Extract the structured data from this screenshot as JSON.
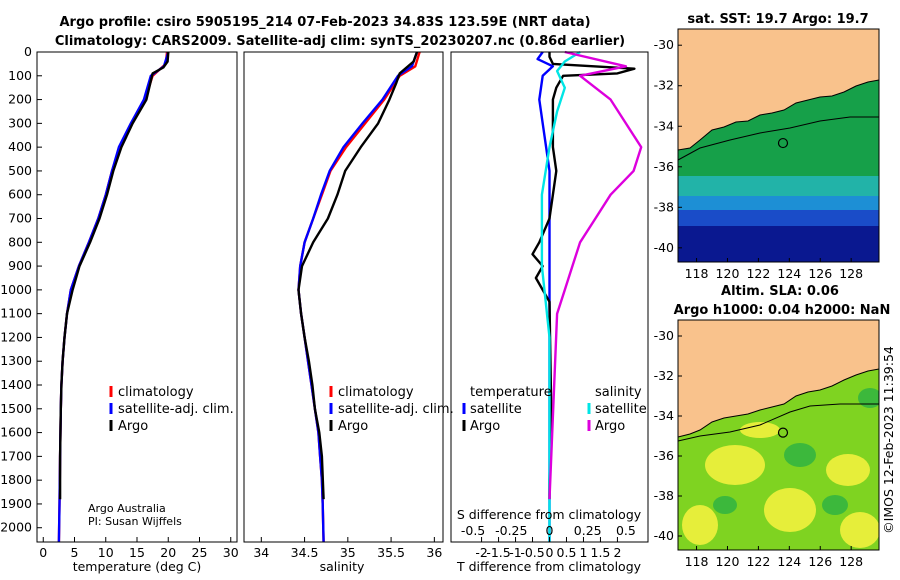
{
  "title_line1": "Argo profile: csiro 5905195_214 07-Feb-2023 34.83S 123.59E (NRT data)",
  "title_line2": "Climatology: CARS2009. Satellite-adj clim: synTS_20230207.nc (0.86d earlier)",
  "credit": {
    "line1": "Argo Australia",
    "line2": "PI: Susan Wijffels"
  },
  "watermark": "©IMOS 12-Feb-2023 11:39:54",
  "colors": {
    "climatology": "#ff0000",
    "satellite": "#0000ff",
    "argo": "#000000",
    "sat_s": "#00e5e5",
    "argo_s": "#dd00dd",
    "land": "#f9c28c"
  },
  "chart_data": [
    {
      "type": "line",
      "id": "temperature",
      "xlabel": "temperature (deg C)",
      "xlim": [
        -1,
        31
      ],
      "ylim": [
        2060,
        0
      ],
      "xticks": [
        "0",
        "5",
        "10",
        "15",
        "20",
        "25",
        "30"
      ],
      "yticks": [
        "0",
        "100",
        "200",
        "300",
        "400",
        "500",
        "600",
        "700",
        "800",
        "900",
        "1000",
        "1100",
        "1200",
        "1300",
        "1400",
        "1500",
        "1600",
        "1700",
        "1800",
        "1900",
        "2000"
      ],
      "legend": [
        "climatology",
        "satellite-adj. clim.",
        "Argo"
      ],
      "series": [
        {
          "name": "climatology",
          "points": [
            [
              19.8,
              0
            ],
            [
              19.6,
              50
            ],
            [
              17.5,
              100
            ],
            [
              16.3,
              200
            ],
            [
              14.2,
              300
            ],
            [
              12.3,
              400
            ],
            [
              11,
              500
            ],
            [
              10,
              600
            ],
            [
              8.8,
              700
            ],
            [
              7.3,
              800
            ],
            [
              5.7,
              900
            ],
            [
              4.4,
              1000
            ],
            [
              3.8,
              1100
            ],
            [
              3.4,
              1200
            ],
            [
              3.1,
              1300
            ],
            [
              2.9,
              1400
            ],
            [
              2.8,
              1500
            ],
            [
              2.7,
              1700
            ],
            [
              2.6,
              1900
            ],
            [
              2.5,
              2060
            ]
          ]
        },
        {
          "name": "satellite-adj. clim.",
          "points": [
            [
              20,
              0
            ],
            [
              19.3,
              60
            ],
            [
              17.2,
              100
            ],
            [
              16.1,
              200
            ],
            [
              14,
              300
            ],
            [
              12.1,
              400
            ],
            [
              11,
              500
            ],
            [
              10,
              600
            ],
            [
              8.8,
              700
            ],
            [
              7.3,
              800
            ],
            [
              5.7,
              900
            ],
            [
              4.4,
              1000
            ],
            [
              3.8,
              1100
            ],
            [
              3.4,
              1200
            ],
            [
              3.1,
              1300
            ],
            [
              2.9,
              1400
            ],
            [
              2.8,
              1500
            ],
            [
              2.7,
              1700
            ],
            [
              2.6,
              1900
            ],
            [
              2.5,
              2060
            ]
          ]
        },
        {
          "name": "Argo",
          "points": [
            [
              20,
              0
            ],
            [
              19.9,
              40
            ],
            [
              19.2,
              65
            ],
            [
              17.5,
              90
            ],
            [
              16.5,
              200
            ],
            [
              14.3,
              300
            ],
            [
              12.5,
              400
            ],
            [
              11.2,
              500
            ],
            [
              10.2,
              600
            ],
            [
              9,
              700
            ],
            [
              7.5,
              800
            ],
            [
              5.8,
              900
            ],
            [
              4.7,
              1000
            ],
            [
              3.8,
              1100
            ],
            [
              3.4,
              1200
            ],
            [
              3.1,
              1300
            ],
            [
              2.9,
              1400
            ],
            [
              2.8,
              1500
            ],
            [
              2.7,
              1700
            ],
            [
              2.7,
              1880
            ]
          ]
        }
      ]
    },
    {
      "type": "line",
      "id": "salinity",
      "xlabel": "salinity",
      "xlim": [
        33.8,
        36.1
      ],
      "ylim": [
        2060,
        0
      ],
      "xticks": [
        "34",
        "34.5",
        "35",
        "35.5",
        "36"
      ],
      "legend": [
        "climatology",
        "satellite-adj. clim.",
        "Argo"
      ],
      "series": [
        {
          "name": "climatology",
          "points": [
            [
              35.83,
              0
            ],
            [
              35.78,
              60
            ],
            [
              35.6,
              100
            ],
            [
              35.42,
              200
            ],
            [
              35.2,
              300
            ],
            [
              34.98,
              400
            ],
            [
              34.8,
              500
            ],
            [
              34.7,
              600
            ],
            [
              34.6,
              700
            ],
            [
              34.5,
              800
            ],
            [
              34.45,
              900
            ],
            [
              34.43,
              1000
            ],
            [
              34.46,
              1100
            ],
            [
              34.5,
              1200
            ],
            [
              34.54,
              1300
            ],
            [
              34.58,
              1400
            ],
            [
              34.62,
              1500
            ],
            [
              34.66,
              1600
            ],
            [
              34.68,
              1700
            ],
            [
              34.7,
              1800
            ],
            [
              34.71,
              1900
            ],
            [
              34.72,
              2060
            ]
          ]
        },
        {
          "name": "satellite-adj. clim.",
          "points": [
            [
              35.8,
              0
            ],
            [
              35.74,
              60
            ],
            [
              35.58,
              100
            ],
            [
              35.4,
              200
            ],
            [
              35.17,
              300
            ],
            [
              34.95,
              400
            ],
            [
              34.79,
              500
            ],
            [
              34.69,
              600
            ],
            [
              34.6,
              700
            ],
            [
              34.5,
              800
            ],
            [
              34.45,
              900
            ],
            [
              34.43,
              1000
            ],
            [
              34.46,
              1100
            ],
            [
              34.5,
              1200
            ],
            [
              34.54,
              1300
            ],
            [
              34.58,
              1400
            ],
            [
              34.62,
              1500
            ],
            [
              34.66,
              1600
            ],
            [
              34.68,
              1700
            ],
            [
              34.7,
              1800
            ],
            [
              34.71,
              1900
            ],
            [
              34.72,
              2060
            ]
          ]
        },
        {
          "name": "Argo",
          "points": [
            [
              35.8,
              0
            ],
            [
              35.76,
              40
            ],
            [
              35.6,
              90
            ],
            [
              35.56,
              130
            ],
            [
              35.48,
              200
            ],
            [
              35.35,
              300
            ],
            [
              35.15,
              400
            ],
            [
              34.97,
              500
            ],
            [
              34.88,
              600
            ],
            [
              34.77,
              700
            ],
            [
              34.6,
              800
            ],
            [
              34.47,
              900
            ],
            [
              34.43,
              1000
            ],
            [
              34.46,
              1100
            ],
            [
              34.5,
              1200
            ],
            [
              34.55,
              1300
            ],
            [
              34.59,
              1400
            ],
            [
              34.62,
              1500
            ],
            [
              34.67,
              1600
            ],
            [
              34.7,
              1700
            ],
            [
              34.72,
              1880
            ]
          ]
        }
      ]
    },
    {
      "type": "line",
      "id": "difference",
      "xlabel": "T difference from climatology",
      "xlabel2": "S difference from climatology",
      "xlim": [
        -2.9,
        2.9
      ],
      "ylim": [
        2060,
        0
      ],
      "xticks": [
        "-2",
        "-1.5",
        "-1",
        "-0.5",
        "0",
        "0.5",
        "1",
        "1.5",
        "2"
      ],
      "s_ticks": [
        "-0.5",
        "-0.25",
        "0",
        "0.25",
        "0.5"
      ],
      "legend_t_title": "temperature",
      "legend_s_title": "salinity",
      "legend_t": [
        "satellite",
        "Argo"
      ],
      "legend_s": [
        "satellite",
        "Argo"
      ],
      "series": [
        {
          "name": "T satellite",
          "points": [
            [
              -0.2,
              0
            ],
            [
              -0.35,
              30
            ],
            [
              0.1,
              60
            ],
            [
              -0.2,
              100
            ],
            [
              -0.25,
              150
            ],
            [
              -0.3,
              200
            ],
            [
              -0.2,
              300
            ],
            [
              -0.1,
              400
            ],
            [
              0,
              500
            ],
            [
              0,
              700
            ],
            [
              0,
              900
            ],
            [
              0,
              2060
            ]
          ]
        },
        {
          "name": "T Argo",
          "points": [
            [
              0,
              0
            ],
            [
              0,
              20
            ],
            [
              0.1,
              50
            ],
            [
              2.5,
              70
            ],
            [
              2,
              90
            ],
            [
              0.4,
              100
            ],
            [
              0.2,
              150
            ],
            [
              0.1,
              200
            ],
            [
              0.1,
              400
            ],
            [
              0.2,
              500
            ],
            [
              0.1,
              600
            ],
            [
              0,
              700
            ],
            [
              -0.3,
              800
            ],
            [
              -0.5,
              850
            ],
            [
              -0.2,
              900
            ],
            [
              -0.4,
              950
            ],
            [
              -0.2,
              1000
            ],
            [
              0,
              1050
            ],
            [
              0.05,
              1500
            ],
            [
              0,
              1800
            ],
            [
              0,
              1880
            ]
          ]
        },
        {
          "name": "S satellite",
          "points": [
            [
              0.2,
              0
            ],
            [
              0.1,
              40
            ],
            [
              0.05,
              80
            ],
            [
              0.1,
              150
            ],
            [
              0.05,
              250
            ],
            [
              0,
              400
            ],
            [
              -0.05,
              600
            ],
            [
              -0.05,
              900
            ],
            [
              0,
              1200
            ],
            [
              0,
              2060
            ]
          ]
        },
        {
          "name": "S Argo",
          "points": [
            [
              0.1,
              0
            ],
            [
              0.5,
              60
            ],
            [
              0.2,
              100
            ],
            [
              0.4,
              200
            ],
            [
              0.5,
              300
            ],
            [
              0.6,
              400
            ],
            [
              0.55,
              500
            ],
            [
              0.4,
              600
            ],
            [
              0.3,
              700
            ],
            [
              0.2,
              800
            ],
            [
              0.15,
              900
            ],
            [
              0.1,
              1000
            ],
            [
              0.05,
              1100
            ],
            [
              0,
              1880
            ]
          ]
        }
      ]
    },
    {
      "type": "heatmap",
      "id": "sst_map",
      "title": "sat. SST: 19.7 Argo: 19.7",
      "xticks": [
        "118",
        "120",
        "122",
        "124",
        "126",
        "128"
      ],
      "yticks": [
        "-30",
        "-32",
        "-34",
        "-36",
        "-38",
        "-40"
      ],
      "xlim": [
        116.8,
        129.8
      ],
      "ylim": [
        -40.7,
        -29.2
      ],
      "argo_position": [
        123.59,
        -34.83
      ]
    },
    {
      "type": "heatmap",
      "id": "sla_map",
      "title": "Altim. SLA: 0.06",
      "title2": "Argo h1000: 0.04 h2000: NaN",
      "xticks": [
        "118",
        "120",
        "122",
        "124",
        "126",
        "128"
      ],
      "yticks": [
        "-30",
        "-32",
        "-34",
        "-36",
        "-38",
        "-40"
      ],
      "xlim": [
        116.8,
        129.8
      ],
      "ylim": [
        -40.7,
        -29.2
      ],
      "argo_position": [
        123.59,
        -34.83
      ]
    }
  ]
}
